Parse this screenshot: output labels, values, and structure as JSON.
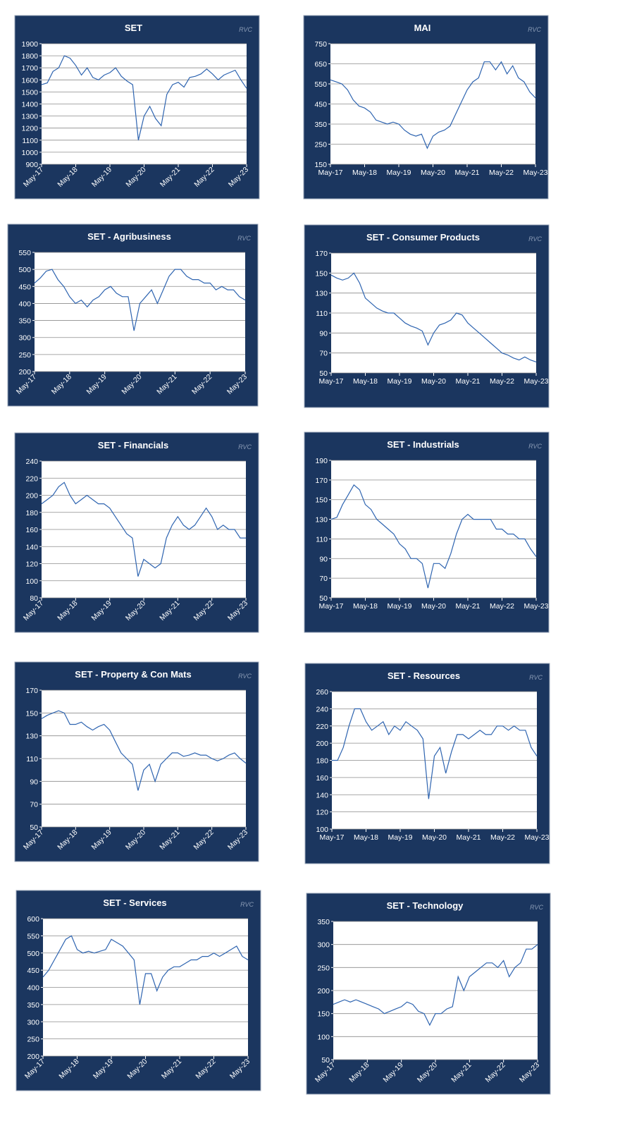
{
  "chart_data": [
    {
      "type": "line",
      "title": "SET",
      "watermark": "RVC",
      "color": "#2e64b0",
      "grid": true,
      "ylim": [
        900,
        1900
      ],
      "yticks": [
        900,
        1000,
        1100,
        1200,
        1300,
        1400,
        1500,
        1600,
        1700,
        1800,
        1900
      ],
      "categories": [
        "May-17",
        null,
        null,
        null,
        null,
        null,
        "May-18",
        null,
        null,
        null,
        null,
        null,
        "May-19",
        null,
        null,
        null,
        null,
        null,
        "May-20",
        null,
        null,
        null,
        null,
        null,
        "May-21",
        null,
        null,
        null,
        null,
        null,
        "May-22",
        null,
        null,
        null,
        null,
        null,
        "May-23"
      ],
      "values": [
        1560,
        1575,
        1670,
        1700,
        1800,
        1780,
        1720,
        1640,
        1700,
        1620,
        1600,
        1640,
        1660,
        1700,
        1630,
        1590,
        1560,
        1100,
        1300,
        1380,
        1280,
        1220,
        1480,
        1560,
        1580,
        1540,
        1620,
        1630,
        1650,
        1690,
        1650,
        1600,
        1640,
        1660,
        1680,
        1600,
        1530
      ]
    },
    {
      "type": "line",
      "title": "MAI",
      "watermark": "RVC",
      "color": "#2e64b0",
      "grid": true,
      "ylim": [
        150,
        750
      ],
      "yticks": [
        150,
        250,
        350,
        450,
        550,
        650,
        750
      ],
      "categories": [
        "May-17",
        null,
        null,
        null,
        null,
        null,
        "May-18",
        null,
        null,
        null,
        null,
        null,
        "May-19",
        null,
        null,
        null,
        null,
        null,
        "May-20",
        null,
        null,
        null,
        null,
        null,
        "May-21",
        null,
        null,
        null,
        null,
        null,
        "May-22",
        null,
        null,
        null,
        null,
        null,
        "May-23"
      ],
      "values": [
        570,
        560,
        550,
        520,
        470,
        440,
        430,
        410,
        370,
        360,
        350,
        360,
        350,
        320,
        300,
        290,
        300,
        230,
        290,
        310,
        320,
        340,
        400,
        460,
        520,
        560,
        580,
        660,
        660,
        620,
        660,
        600,
        640,
        580,
        560,
        510,
        480
      ]
    },
    {
      "type": "line",
      "title": "SET - Agribusiness",
      "watermark": "RVC",
      "color": "#2e64b0",
      "grid": true,
      "ylim": [
        200,
        550
      ],
      "yticks": [
        200,
        250,
        300,
        350,
        400,
        450,
        500,
        550
      ],
      "categories": [
        "May-17",
        null,
        null,
        null,
        null,
        null,
        "May-18",
        null,
        null,
        null,
        null,
        null,
        "May-19",
        null,
        null,
        null,
        null,
        null,
        "May-20",
        null,
        null,
        null,
        null,
        null,
        "May-21",
        null,
        null,
        null,
        null,
        null,
        "May-22",
        null,
        null,
        null,
        null,
        null,
        "May-23"
      ],
      "values": [
        460,
        475,
        495,
        500,
        470,
        450,
        420,
        400,
        410,
        390,
        410,
        420,
        440,
        450,
        430,
        420,
        420,
        320,
        400,
        420,
        440,
        400,
        440,
        480,
        500,
        500,
        480,
        470,
        470,
        460,
        460,
        440,
        450,
        440,
        440,
        420,
        410
      ]
    },
    {
      "type": "line",
      "title": "SET - Consumer Products",
      "watermark": "RVC",
      "color": "#2e64b0",
      "grid": true,
      "ylim": [
        50,
        170
      ],
      "yticks": [
        50,
        70,
        90,
        110,
        130,
        150,
        170
      ],
      "categories": [
        "May-17",
        null,
        null,
        null,
        null,
        null,
        "May-18",
        null,
        null,
        null,
        null,
        null,
        "May-19",
        null,
        null,
        null,
        null,
        null,
        "May-20",
        null,
        null,
        null,
        null,
        null,
        "May-21",
        null,
        null,
        null,
        null,
        null,
        "May-22",
        null,
        null,
        null,
        null,
        null,
        "May-23"
      ],
      "values": [
        148,
        145,
        143,
        145,
        150,
        140,
        125,
        120,
        115,
        112,
        110,
        110,
        105,
        100,
        97,
        95,
        92,
        78,
        90,
        98,
        100,
        103,
        110,
        108,
        100,
        95,
        90,
        85,
        80,
        75,
        70,
        68,
        65,
        63,
        66,
        63,
        61
      ]
    },
    {
      "type": "line",
      "title": "SET - Financials",
      "watermark": "RVC",
      "color": "#2e64b0",
      "grid": true,
      "ylim": [
        80,
        240
      ],
      "yticks": [
        80,
        100,
        120,
        140,
        160,
        180,
        200,
        220,
        240
      ],
      "categories": [
        "May-17",
        null,
        null,
        null,
        null,
        null,
        "May-18",
        null,
        null,
        null,
        null,
        null,
        "May-19",
        null,
        null,
        null,
        null,
        null,
        "May-20",
        null,
        null,
        null,
        null,
        null,
        "May-21",
        null,
        null,
        null,
        null,
        null,
        "May-22",
        null,
        null,
        null,
        null,
        null,
        "May-23"
      ],
      "values": [
        190,
        195,
        200,
        210,
        215,
        200,
        190,
        195,
        200,
        195,
        190,
        190,
        185,
        175,
        165,
        155,
        150,
        105,
        125,
        120,
        115,
        120,
        150,
        165,
        175,
        165,
        160,
        165,
        175,
        185,
        175,
        160,
        165,
        160,
        160,
        150,
        150
      ]
    },
    {
      "type": "line",
      "title": "SET - Industrials",
      "watermark": "RVC",
      "color": "#2e64b0",
      "grid": true,
      "ylim": [
        50,
        190
      ],
      "yticks": [
        50,
        70,
        90,
        110,
        130,
        150,
        170,
        190
      ],
      "categories": [
        "May-17",
        null,
        null,
        null,
        null,
        null,
        "May-18",
        null,
        null,
        null,
        null,
        null,
        "May-19",
        null,
        null,
        null,
        null,
        null,
        "May-20",
        null,
        null,
        null,
        null,
        null,
        "May-21",
        null,
        null,
        null,
        null,
        null,
        "May-22",
        null,
        null,
        null,
        null,
        null,
        "May-23"
      ],
      "values": [
        130,
        132,
        145,
        155,
        165,
        160,
        145,
        140,
        130,
        125,
        120,
        115,
        105,
        100,
        90,
        90,
        85,
        60,
        85,
        85,
        80,
        95,
        115,
        130,
        135,
        130,
        130,
        130,
        130,
        120,
        120,
        115,
        115,
        110,
        110,
        100,
        92
      ]
    },
    {
      "type": "line",
      "title": "SET - Property & Con Mats",
      "watermark": "RVC",
      "color": "#2e64b0",
      "grid": true,
      "ylim": [
        50,
        170
      ],
      "yticks": [
        50,
        70,
        90,
        110,
        130,
        150,
        170
      ],
      "categories": [
        "May-17",
        null,
        null,
        null,
        null,
        null,
        "May-18",
        null,
        null,
        null,
        null,
        null,
        "May-19",
        null,
        null,
        null,
        null,
        null,
        "May-20",
        null,
        null,
        null,
        null,
        null,
        "May-21",
        null,
        null,
        null,
        null,
        null,
        "May-22",
        null,
        null,
        null,
        null,
        null,
        "May-23"
      ],
      "values": [
        145,
        148,
        150,
        152,
        150,
        140,
        140,
        142,
        138,
        135,
        138,
        140,
        135,
        125,
        115,
        110,
        105,
        82,
        100,
        105,
        90,
        105,
        110,
        115,
        115,
        112,
        113,
        115,
        113,
        113,
        110,
        108,
        110,
        113,
        115,
        110,
        106
      ]
    },
    {
      "type": "line",
      "title": "SET - Resources",
      "watermark": "RVC",
      "color": "#2e64b0",
      "grid": true,
      "ylim": [
        100,
        260
      ],
      "yticks": [
        100,
        120,
        140,
        160,
        180,
        200,
        220,
        240,
        260
      ],
      "categories": [
        "May-17",
        null,
        null,
        null,
        null,
        null,
        "May-18",
        null,
        null,
        null,
        null,
        null,
        "May-19",
        null,
        null,
        null,
        null,
        null,
        "May-20",
        null,
        null,
        null,
        null,
        null,
        "May-21",
        null,
        null,
        null,
        null,
        null,
        "May-22",
        null,
        null,
        null,
        null,
        null,
        "May-23"
      ],
      "values": [
        180,
        180,
        195,
        220,
        240,
        240,
        225,
        215,
        220,
        225,
        210,
        220,
        215,
        225,
        220,
        215,
        205,
        135,
        185,
        195,
        165,
        190,
        210,
        210,
        205,
        210,
        215,
        210,
        210,
        220,
        220,
        215,
        220,
        215,
        215,
        195,
        185
      ]
    },
    {
      "type": "line",
      "title": "SET - Services",
      "watermark": "RVC",
      "color": "#2e64b0",
      "grid": true,
      "ylim": [
        200,
        600
      ],
      "yticks": [
        200,
        250,
        300,
        350,
        400,
        450,
        500,
        550,
        600
      ],
      "categories": [
        "May-17",
        null,
        null,
        null,
        null,
        null,
        "May-18",
        null,
        null,
        null,
        null,
        null,
        "May-19",
        null,
        null,
        null,
        null,
        null,
        "May-20",
        null,
        null,
        null,
        null,
        null,
        "May-21",
        null,
        null,
        null,
        null,
        null,
        "May-22",
        null,
        null,
        null,
        null,
        null,
        "May-23"
      ],
      "values": [
        430,
        450,
        480,
        510,
        540,
        550,
        510,
        500,
        505,
        500,
        505,
        510,
        540,
        530,
        520,
        500,
        480,
        350,
        440,
        440,
        390,
        430,
        450,
        460,
        460,
        470,
        480,
        480,
        490,
        490,
        500,
        490,
        500,
        510,
        520,
        490,
        480
      ]
    },
    {
      "type": "line",
      "title": "SET - Technology",
      "watermark": "RVC",
      "color": "#2e64b0",
      "grid": true,
      "ylim": [
        50,
        350
      ],
      "yticks": [
        50,
        100,
        150,
        200,
        250,
        300,
        350
      ],
      "categories": [
        "May-17",
        null,
        null,
        null,
        null,
        null,
        "May-18",
        null,
        null,
        null,
        null,
        null,
        "May-19",
        null,
        null,
        null,
        null,
        null,
        "May-20",
        null,
        null,
        null,
        null,
        null,
        "May-21",
        null,
        null,
        null,
        null,
        null,
        "May-22",
        null,
        null,
        null,
        null,
        null,
        "May-23"
      ],
      "values": [
        170,
        175,
        180,
        175,
        180,
        175,
        170,
        165,
        160,
        150,
        155,
        160,
        165,
        175,
        170,
        155,
        150,
        125,
        150,
        150,
        160,
        165,
        230,
        200,
        230,
        240,
        250,
        260,
        260,
        250,
        265,
        230,
        250,
        260,
        290,
        290,
        300
      ]
    }
  ]
}
